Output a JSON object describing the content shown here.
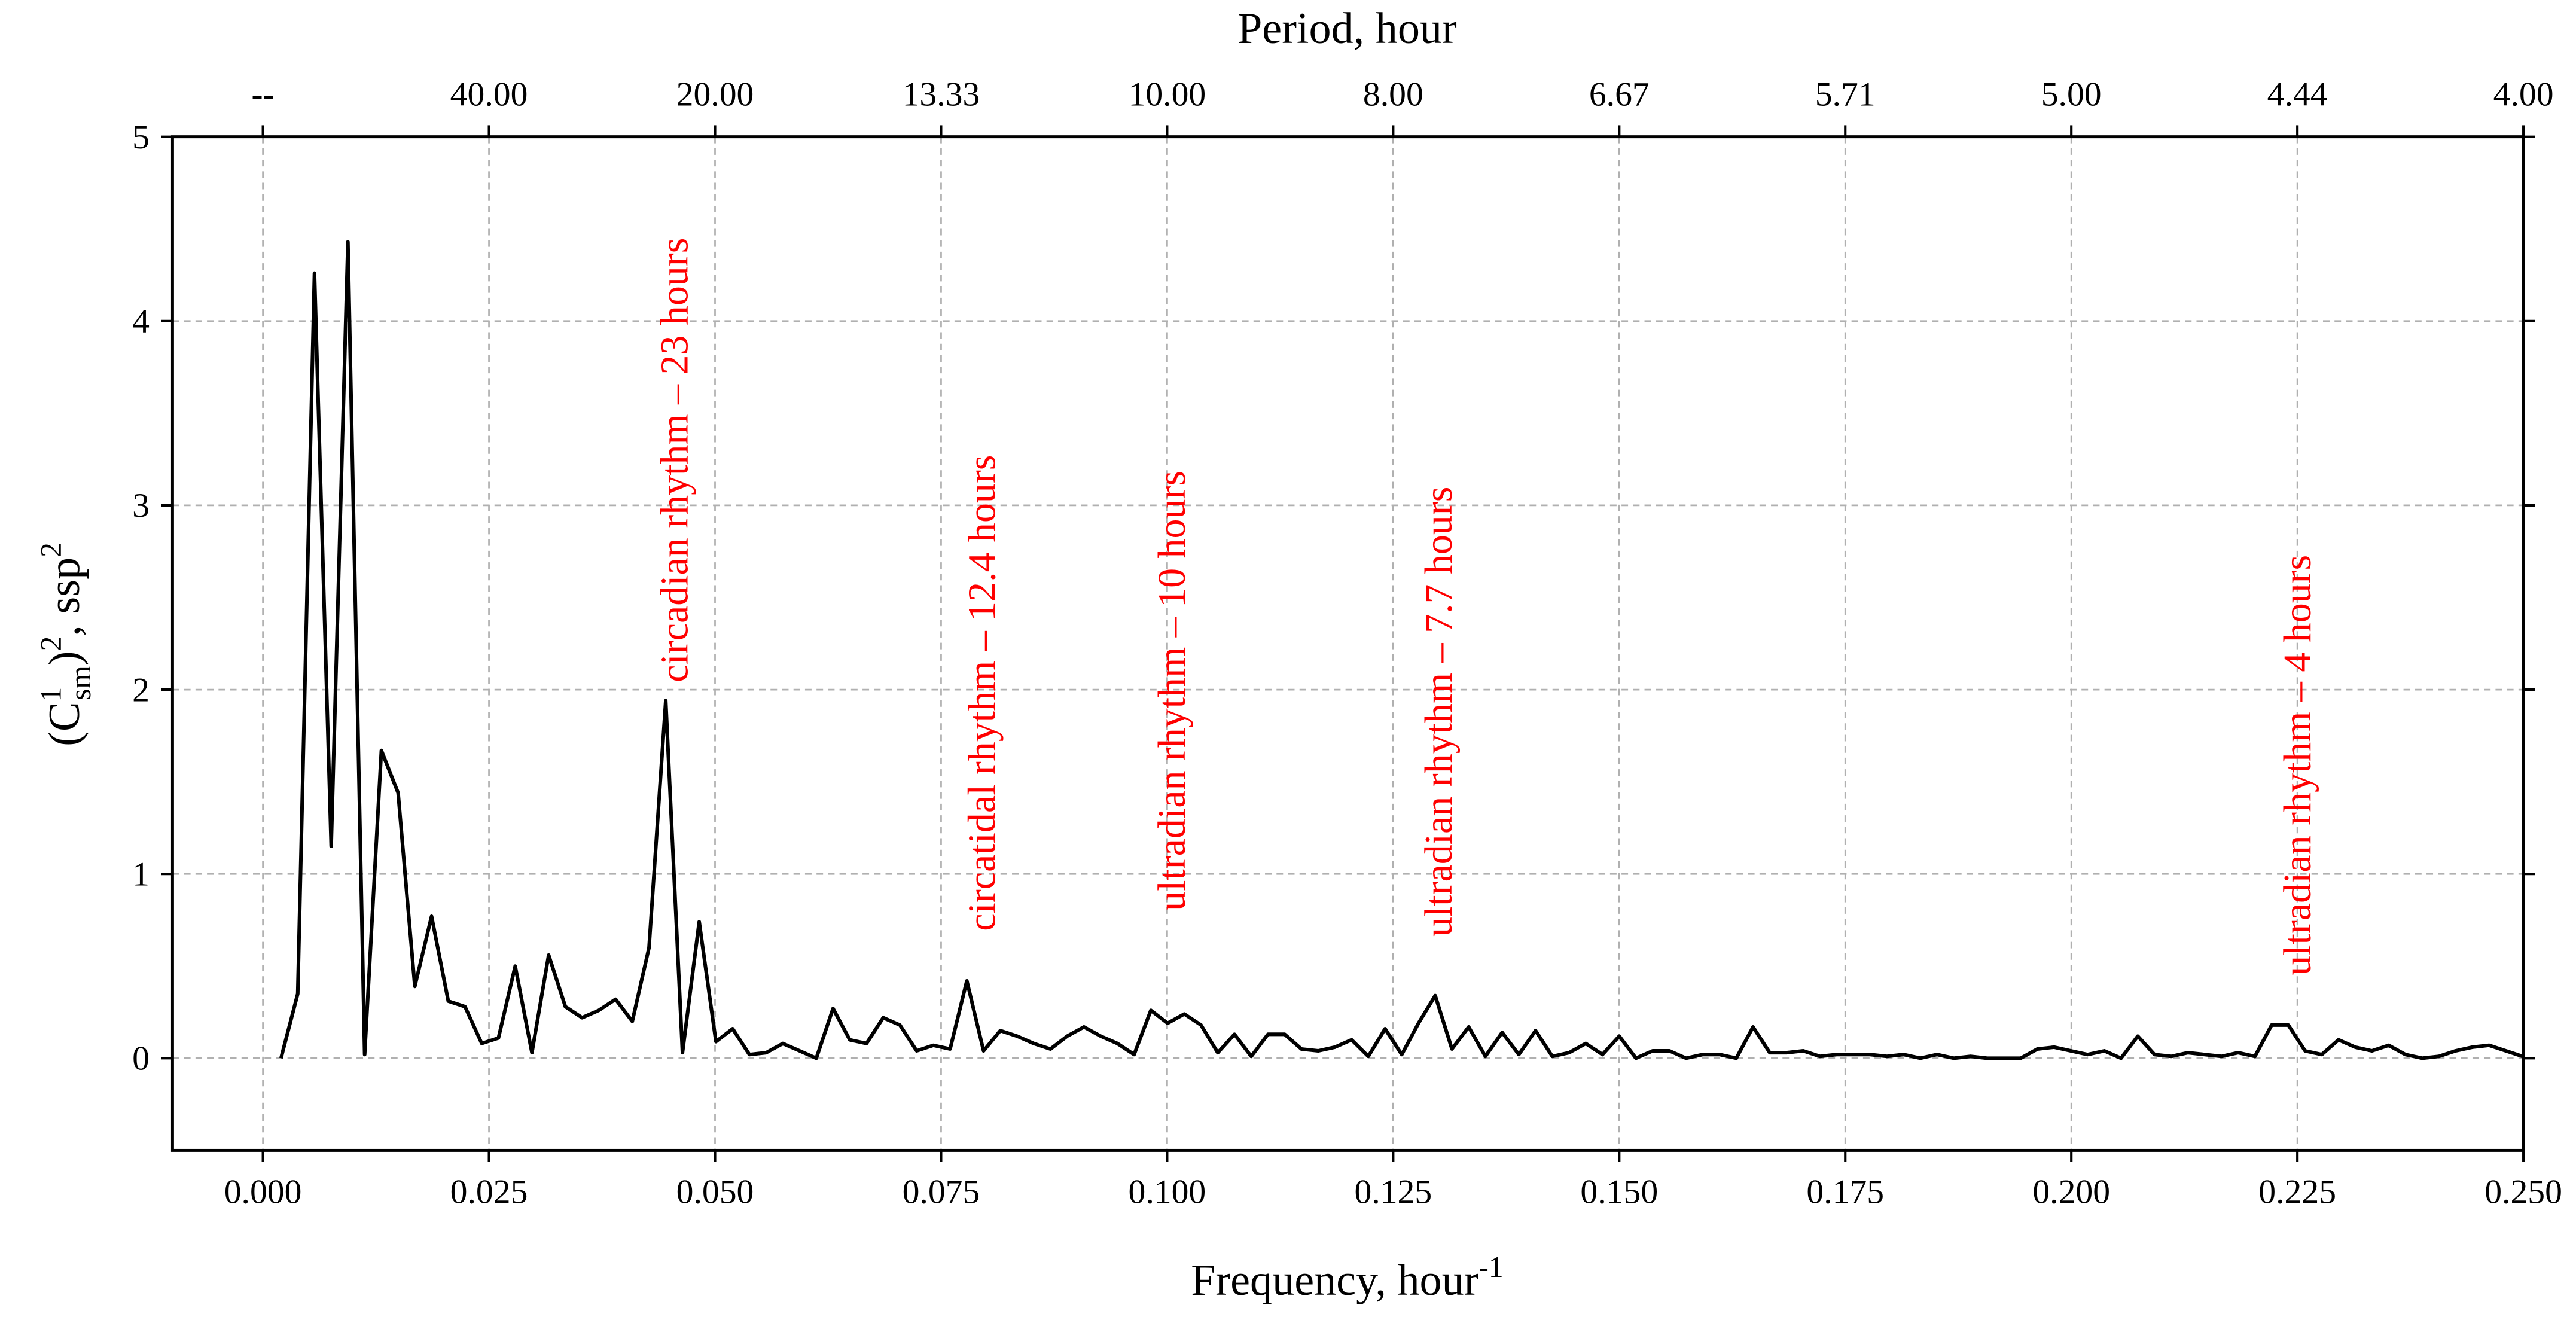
{
  "chart_data": {
    "type": "line",
    "xlabel": [
      "Frequency, hour",
      "-1"
    ],
    "ylabel": [
      "(C",
      "1",
      "sm",
      ")",
      "2",
      ", ssp",
      "2"
    ],
    "x2label": "Period, hour",
    "xlim": [
      -0.01,
      0.25
    ],
    "ylim": [
      -0.5,
      5
    ],
    "xticks": [
      {
        "value": 0,
        "label": "0.000"
      },
      {
        "value": 0.025,
        "label": "0.025"
      },
      {
        "value": 0.05,
        "label": "0.050"
      },
      {
        "value": 0.075,
        "label": "0.075"
      },
      {
        "value": 0.1,
        "label": "0.100"
      },
      {
        "value": 0.125,
        "label": "0.125"
      },
      {
        "value": 0.15,
        "label": "0.150"
      },
      {
        "value": 0.175,
        "label": "0.175"
      },
      {
        "value": 0.2,
        "label": "0.200"
      },
      {
        "value": 0.225,
        "label": "0.225"
      },
      {
        "value": 0.25,
        "label": "0.250"
      }
    ],
    "x2ticks": [
      {
        "value": 0,
        "label": "--"
      },
      {
        "value": 0.025,
        "label": "40.00"
      },
      {
        "value": 0.05,
        "label": "20.00"
      },
      {
        "value": 0.075,
        "label": "13.33"
      },
      {
        "value": 0.1,
        "label": "10.00"
      },
      {
        "value": 0.125,
        "label": "8.00"
      },
      {
        "value": 0.15,
        "label": "6.67"
      },
      {
        "value": 0.175,
        "label": "5.71"
      },
      {
        "value": 0.2,
        "label": "5.00"
      },
      {
        "value": 0.225,
        "label": "4.44"
      },
      {
        "value": 0.25,
        "label": "4.00"
      }
    ],
    "yticks": [
      0,
      1,
      2,
      3,
      4,
      5
    ],
    "grid": true,
    "series": [
      {
        "color": "#000000",
        "x": [
          0.002,
          0.00385,
          0.0057,
          0.00755,
          0.0094,
          0.01125,
          0.0131,
          0.01495,
          0.0168,
          0.01865,
          0.0205,
          0.02235,
          0.0242,
          0.02605,
          0.0279,
          0.02975,
          0.0316,
          0.03345,
          0.0353,
          0.03715,
          0.039,
          0.04085,
          0.0427,
          0.04455,
          0.0464,
          0.04825,
          0.0501,
          0.05195,
          0.0538,
          0.05565,
          0.0575,
          0.05935,
          0.0612,
          0.06305,
          0.0649,
          0.06675,
          0.0686,
          0.07045,
          0.0723,
          0.07415,
          0.076,
          0.07785,
          0.0797,
          0.08155,
          0.0834,
          0.08525,
          0.0871,
          0.08895,
          0.0908,
          0.09265,
          0.0945,
          0.09635,
          0.0982,
          0.10005,
          0.1019,
          0.10375,
          0.1056,
          0.10745,
          0.1093,
          0.11115,
          0.113,
          0.11485,
          0.1167,
          0.11855,
          0.1204,
          0.12225,
          0.1241,
          0.12595,
          0.1278,
          0.12965,
          0.1315,
          0.13335,
          0.1352,
          0.13705,
          0.1389,
          0.14075,
          0.1426,
          0.14445,
          0.1463,
          0.14815,
          0.15,
          0.15185,
          0.1537,
          0.15555,
          0.1574,
          0.15925,
          0.1611,
          0.16295,
          0.1648,
          0.16665,
          0.1685,
          0.17035,
          0.1722,
          0.17405,
          0.1759,
          0.17775,
          0.1796,
          0.18145,
          0.1833,
          0.18515,
          0.187,
          0.18885,
          0.1907,
          0.19255,
          0.1944,
          0.19625,
          0.1981,
          0.19995,
          0.2018,
          0.20365,
          0.2055,
          0.20735,
          0.2092,
          0.21105,
          0.2129,
          0.21475,
          0.2166,
          0.21845,
          0.2203,
          0.22215,
          0.224,
          0.22585,
          0.2277,
          0.22955,
          0.2314,
          0.23325,
          0.2351,
          0.23695,
          0.2388,
          0.24065,
          0.2425,
          0.24435,
          0.2462,
          0.24805,
          0.2499
        ],
        "values": [
          0.0,
          0.35,
          4.26,
          1.15,
          4.43,
          0.02,
          1.67,
          1.44,
          0.39,
          0.77,
          0.31,
          0.28,
          0.08,
          0.11,
          0.5,
          0.03,
          0.56,
          0.28,
          0.22,
          0.26,
          0.32,
          0.2,
          0.6,
          1.94,
          0.03,
          0.74,
          0.09,
          0.16,
          0.02,
          0.03,
          0.08,
          0.04,
          0.0,
          0.27,
          0.1,
          0.08,
          0.22,
          0.18,
          0.04,
          0.07,
          0.05,
          0.42,
          0.04,
          0.15,
          0.12,
          0.08,
          0.05,
          0.12,
          0.17,
          0.12,
          0.08,
          0.02,
          0.26,
          0.19,
          0.24,
          0.18,
          0.03,
          0.13,
          0.01,
          0.13,
          0.13,
          0.05,
          0.04,
          0.06,
          0.1,
          0.01,
          0.16,
          0.02,
          0.19,
          0.34,
          0.05,
          0.17,
          0.01,
          0.14,
          0.02,
          0.15,
          0.01,
          0.03,
          0.08,
          0.02,
          0.12,
          0.0,
          0.04,
          0.04,
          0.0,
          0.02,
          0.02,
          0.0,
          0.17,
          0.03,
          0.03,
          0.04,
          0.01,
          0.02,
          0.02,
          0.02,
          0.01,
          0.02,
          0.0,
          0.02,
          0.0,
          0.01,
          0.0,
          0.0,
          0.0,
          0.05,
          0.06,
          0.04,
          0.02,
          0.04,
          0.0,
          0.12,
          0.02,
          0.01,
          0.03,
          0.02,
          0.01,
          0.03,
          0.01,
          0.18,
          0.18,
          0.04,
          0.02,
          0.1,
          0.06,
          0.04,
          0.07,
          0.02,
          0.0,
          0.01,
          0.04,
          0.06,
          0.07,
          0.04,
          0.01
        ]
      }
    ],
    "annotations": [
      {
        "text": "circadian rhythm – 23 hours",
        "x": 0.0455,
        "y": 2.04,
        "color": "#ff0000"
      },
      {
        "text": "circatidal rhythm – 12.4 hours",
        "x": 0.0795,
        "y": 0.69,
        "color": "#ff0000"
      },
      {
        "text": "ultradian rhythm – 10 hours",
        "x": 0.1005,
        "y": 0.8,
        "color": "#ff0000"
      },
      {
        "text": "ultradian rhythm – 7.7 hours",
        "x": 0.13,
        "y": 0.66,
        "color": "#ff0000"
      },
      {
        "text": "ultradian rhythm – 4 hours",
        "x": 0.225,
        "y": 0.45,
        "color": "#ff0000"
      }
    ]
  }
}
